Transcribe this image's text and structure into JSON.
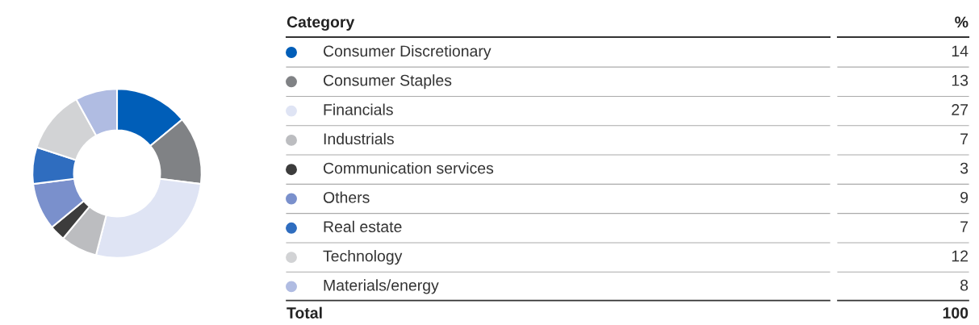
{
  "chart_data": {
    "type": "donut",
    "categories": [
      "Consumer Discretionary",
      "Consumer Staples",
      "Financials",
      "Industrials",
      "Communication services",
      "Others",
      "Real estate",
      "Technology",
      "Materials/energy"
    ],
    "values": [
      14,
      13,
      27,
      7,
      3,
      9,
      7,
      12,
      8
    ],
    "colors": [
      "#005eb8",
      "#808285",
      "#dfe4f4",
      "#bcbdc0",
      "#3c3c3c",
      "#7a90cc",
      "#2f6dbf",
      "#d2d3d5",
      "#b0bce2"
    ],
    "data_labels": true,
    "legend": "right",
    "annotations": [
      "Category",
      "%",
      "Total",
      "100"
    ]
  }
}
